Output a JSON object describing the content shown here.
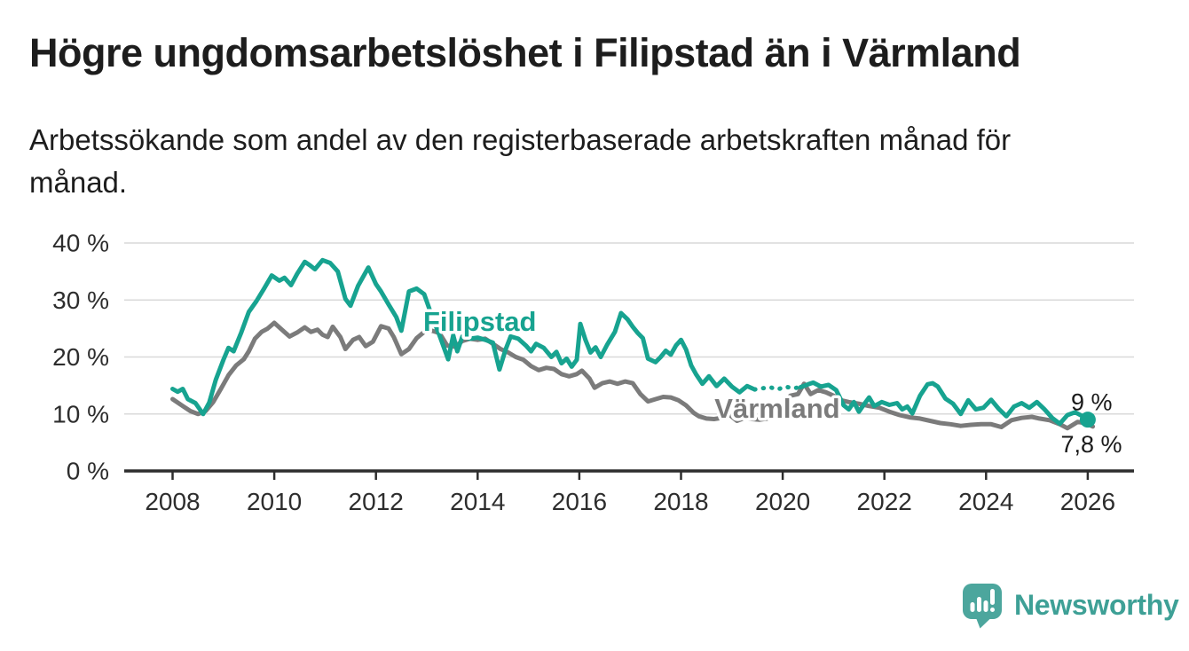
{
  "title": "Högre ungdomsarbetslöshet i Filipstad än i Värmland",
  "subtitle": "Arbetssökande som andel av den registerbaserade arbetskraften månad för månad.",
  "colors": {
    "filipstad": "#17a390",
    "varmland": "#7b7b7b",
    "grid": "#d9d9d9",
    "axis": "#2d2d2d",
    "axis_text": "#2d2d2d",
    "annotation_text": "#1a1a1a",
    "logo_icon": "#4ca69d",
    "logo_text": "#3ea096",
    "background": "#ffffff"
  },
  "branding": {
    "logo_text": "Newsworthy",
    "logo_icon": "bar-chart-speech-bubble-with-exclamation"
  },
  "chart_data": {
    "type": "line",
    "title": "Högre ungdomsarbetslöshet i Filipstad än i Värmland",
    "subtitle": "Arbetssökande som andel av den registerbaserade arbetskraften månad för månad.",
    "xlabel": "",
    "ylabel": "",
    "grid": "horizontal-only",
    "legend": "inline-labels-on-lines",
    "x_axis": {
      "min": 2007.05,
      "max": 2026.91,
      "ticks": [
        2008,
        2010,
        2012,
        2014,
        2016,
        2018,
        2020,
        2022,
        2024,
        2026
      ],
      "tick_labels": [
        "2008",
        "2010",
        "2012",
        "2014",
        "2016",
        "2018",
        "2020",
        "2022",
        "2024",
        "2026"
      ]
    },
    "y_axis": {
      "min": 0,
      "max": 40,
      "ticks": [
        0,
        10,
        20,
        30,
        40
      ],
      "tick_labels": [
        "0 %",
        "10 %",
        "20 %",
        "30 %",
        "40 %"
      ]
    },
    "series": [
      {
        "name": "Värmland",
        "color": "#7b7b7b",
        "dash_ranges": [],
        "points": [
          [
            2008.0,
            12.6
          ],
          [
            2008.2,
            11.4
          ],
          [
            2008.35,
            10.5
          ],
          [
            2008.5,
            10.0
          ],
          [
            2008.65,
            10.5
          ],
          [
            2008.8,
            12.1
          ],
          [
            2008.95,
            14.4
          ],
          [
            2009.1,
            16.8
          ],
          [
            2009.25,
            18.5
          ],
          [
            2009.4,
            19.6
          ],
          [
            2009.5,
            21.0
          ],
          [
            2009.62,
            23.2
          ],
          [
            2009.75,
            24.4
          ],
          [
            2009.87,
            25.0
          ],
          [
            2010.0,
            26.0
          ],
          [
            2010.15,
            24.8
          ],
          [
            2010.3,
            23.6
          ],
          [
            2010.45,
            24.3
          ],
          [
            2010.6,
            25.2
          ],
          [
            2010.72,
            24.4
          ],
          [
            2010.85,
            24.8
          ],
          [
            2010.95,
            23.9
          ],
          [
            2011.05,
            23.5
          ],
          [
            2011.15,
            25.3
          ],
          [
            2011.3,
            23.5
          ],
          [
            2011.4,
            21.4
          ],
          [
            2011.55,
            23.0
          ],
          [
            2011.67,
            23.5
          ],
          [
            2011.8,
            21.9
          ],
          [
            2011.94,
            22.7
          ],
          [
            2012.1,
            25.4
          ],
          [
            2012.25,
            25.0
          ],
          [
            2012.35,
            23.5
          ],
          [
            2012.5,
            20.5
          ],
          [
            2012.65,
            21.4
          ],
          [
            2012.8,
            23.3
          ],
          [
            2012.95,
            24.4
          ],
          [
            2013.1,
            24.6
          ],
          [
            2013.25,
            24.2
          ],
          [
            2013.4,
            22.0
          ],
          [
            2013.55,
            21.8
          ],
          [
            2013.7,
            22.8
          ],
          [
            2013.85,
            23.2
          ],
          [
            2014.0,
            23.0
          ],
          [
            2014.15,
            23.2
          ],
          [
            2014.3,
            22.3
          ],
          [
            2014.45,
            21.4
          ],
          [
            2014.6,
            20.8
          ],
          [
            2014.75,
            20.0
          ],
          [
            2014.9,
            19.5
          ],
          [
            2015.05,
            18.4
          ],
          [
            2015.2,
            17.7
          ],
          [
            2015.35,
            18.1
          ],
          [
            2015.5,
            17.9
          ],
          [
            2015.65,
            17.0
          ],
          [
            2015.8,
            16.6
          ],
          [
            2015.95,
            17.0
          ],
          [
            2016.05,
            17.6
          ],
          [
            2016.2,
            16.2
          ],
          [
            2016.3,
            14.6
          ],
          [
            2016.45,
            15.4
          ],
          [
            2016.6,
            15.7
          ],
          [
            2016.75,
            15.3
          ],
          [
            2016.9,
            15.7
          ],
          [
            2017.05,
            15.4
          ],
          [
            2017.2,
            13.5
          ],
          [
            2017.35,
            12.2
          ],
          [
            2017.5,
            12.6
          ],
          [
            2017.65,
            13.0
          ],
          [
            2017.8,
            12.9
          ],
          [
            2017.95,
            12.4
          ],
          [
            2018.1,
            11.5
          ],
          [
            2018.25,
            10.2
          ],
          [
            2018.35,
            9.6
          ],
          [
            2018.5,
            9.2
          ],
          [
            2018.65,
            9.1
          ],
          [
            2018.8,
            9.3
          ],
          [
            2018.95,
            9.9
          ],
          [
            2019.1,
            8.8
          ],
          [
            2019.25,
            9.3
          ],
          [
            2019.4,
            9.1
          ],
          [
            2019.55,
            9.0
          ],
          [
            2019.7,
            9.2
          ],
          [
            2019.85,
            9.8
          ],
          [
            2020.0,
            11.5
          ],
          [
            2020.15,
            13.2
          ],
          [
            2020.3,
            13.5
          ],
          [
            2020.42,
            15.3
          ],
          [
            2020.55,
            13.5
          ],
          [
            2020.7,
            14.2
          ],
          [
            2020.85,
            13.8
          ],
          [
            2021.0,
            13.2
          ],
          [
            2021.15,
            12.4
          ],
          [
            2021.3,
            12.1
          ],
          [
            2021.5,
            11.8
          ],
          [
            2021.7,
            11.4
          ],
          [
            2021.9,
            11.1
          ],
          [
            2022.1,
            10.4
          ],
          [
            2022.3,
            9.8
          ],
          [
            2022.5,
            9.4
          ],
          [
            2022.7,
            9.2
          ],
          [
            2022.9,
            8.8
          ],
          [
            2023.1,
            8.4
          ],
          [
            2023.3,
            8.2
          ],
          [
            2023.5,
            7.9
          ],
          [
            2023.7,
            8.1
          ],
          [
            2023.9,
            8.2
          ],
          [
            2024.1,
            8.2
          ],
          [
            2024.3,
            7.7
          ],
          [
            2024.5,
            8.9
          ],
          [
            2024.7,
            9.3
          ],
          [
            2024.9,
            9.5
          ],
          [
            2025.05,
            9.2
          ],
          [
            2025.25,
            8.9
          ],
          [
            2025.45,
            8.2
          ],
          [
            2025.6,
            7.5
          ],
          [
            2025.8,
            8.6
          ],
          [
            2025.95,
            8.4
          ],
          [
            2026.1,
            7.8
          ]
        ]
      },
      {
        "name": "Filipstad",
        "color": "#17a390",
        "dash_ranges": [
          [
            2019.5,
            2020.28
          ]
        ],
        "points": [
          [
            2008.0,
            14.4
          ],
          [
            2008.1,
            13.9
          ],
          [
            2008.2,
            14.4
          ],
          [
            2008.3,
            12.6
          ],
          [
            2008.45,
            11.9
          ],
          [
            2008.6,
            10.0
          ],
          [
            2008.72,
            12.0
          ],
          [
            2008.85,
            16.0
          ],
          [
            2009.0,
            19.5
          ],
          [
            2009.1,
            21.6
          ],
          [
            2009.2,
            21.0
          ],
          [
            2009.35,
            24.3
          ],
          [
            2009.5,
            27.9
          ],
          [
            2009.65,
            29.8
          ],
          [
            2009.8,
            32.0
          ],
          [
            2009.95,
            34.3
          ],
          [
            2010.1,
            33.4
          ],
          [
            2010.2,
            33.9
          ],
          [
            2010.33,
            32.6
          ],
          [
            2010.45,
            34.6
          ],
          [
            2010.6,
            36.7
          ],
          [
            2010.7,
            36.1
          ],
          [
            2010.8,
            35.4
          ],
          [
            2010.95,
            37.0
          ],
          [
            2011.1,
            36.5
          ],
          [
            2011.25,
            35.0
          ],
          [
            2011.4,
            30.2
          ],
          [
            2011.5,
            29.0
          ],
          [
            2011.65,
            32.5
          ],
          [
            2011.85,
            35.7
          ],
          [
            2012.0,
            32.8
          ],
          [
            2012.1,
            31.5
          ],
          [
            2012.25,
            29.2
          ],
          [
            2012.4,
            27.0
          ],
          [
            2012.5,
            24.6
          ],
          [
            2012.65,
            31.5
          ],
          [
            2012.8,
            32.0
          ],
          [
            2012.95,
            31.0
          ],
          [
            2013.1,
            27.2
          ],
          [
            2013.25,
            23.8
          ],
          [
            2013.42,
            19.6
          ],
          [
            2013.52,
            23.8
          ],
          [
            2013.6,
            21.0
          ],
          [
            2013.7,
            23.6
          ],
          [
            2013.85,
            23.2
          ],
          [
            2014.0,
            23.4
          ],
          [
            2014.15,
            23.0
          ],
          [
            2014.3,
            22.5
          ],
          [
            2014.43,
            17.8
          ],
          [
            2014.55,
            21.3
          ],
          [
            2014.65,
            23.6
          ],
          [
            2014.8,
            23.2
          ],
          [
            2014.95,
            22.0
          ],
          [
            2015.05,
            21.0
          ],
          [
            2015.15,
            22.3
          ],
          [
            2015.3,
            21.6
          ],
          [
            2015.45,
            20.0
          ],
          [
            2015.55,
            20.9
          ],
          [
            2015.65,
            18.9
          ],
          [
            2015.75,
            19.7
          ],
          [
            2015.85,
            18.3
          ],
          [
            2015.95,
            19.5
          ],
          [
            2016.02,
            25.8
          ],
          [
            2016.12,
            23.0
          ],
          [
            2016.22,
            20.8
          ],
          [
            2016.32,
            21.7
          ],
          [
            2016.42,
            20.0
          ],
          [
            2016.55,
            22.2
          ],
          [
            2016.7,
            24.4
          ],
          [
            2016.82,
            27.7
          ],
          [
            2016.95,
            26.6
          ],
          [
            2017.05,
            25.3
          ],
          [
            2017.15,
            24.2
          ],
          [
            2017.25,
            23.3
          ],
          [
            2017.35,
            19.7
          ],
          [
            2017.5,
            19.1
          ],
          [
            2017.6,
            20.0
          ],
          [
            2017.7,
            21.1
          ],
          [
            2017.8,
            20.4
          ],
          [
            2017.9,
            22.0
          ],
          [
            2018.0,
            23.0
          ],
          [
            2018.1,
            21.3
          ],
          [
            2018.2,
            18.5
          ],
          [
            2018.3,
            16.9
          ],
          [
            2018.42,
            15.3
          ],
          [
            2018.55,
            16.6
          ],
          [
            2018.7,
            14.9
          ],
          [
            2018.85,
            16.2
          ],
          [
            2019.0,
            14.8
          ],
          [
            2019.15,
            13.8
          ],
          [
            2019.3,
            14.9
          ],
          [
            2019.45,
            14.3
          ],
          [
            2019.6,
            14.5
          ],
          [
            2019.75,
            14.7
          ],
          [
            2019.9,
            14.3
          ],
          [
            2020.05,
            14.8
          ],
          [
            2020.2,
            14.5
          ],
          [
            2020.35,
            14.7
          ],
          [
            2020.5,
            15.2
          ],
          [
            2020.6,
            15.5
          ],
          [
            2020.75,
            14.8
          ],
          [
            2020.9,
            15.1
          ],
          [
            2021.05,
            14.2
          ],
          [
            2021.2,
            11.5
          ],
          [
            2021.3,
            10.8
          ],
          [
            2021.4,
            12.1
          ],
          [
            2021.5,
            10.4
          ],
          [
            2021.6,
            11.7
          ],
          [
            2021.7,
            12.9
          ],
          [
            2021.8,
            11.4
          ],
          [
            2021.95,
            12.1
          ],
          [
            2022.1,
            11.6
          ],
          [
            2022.25,
            11.9
          ],
          [
            2022.35,
            10.8
          ],
          [
            2022.45,
            11.3
          ],
          [
            2022.55,
            10.1
          ],
          [
            2022.7,
            13.2
          ],
          [
            2022.85,
            15.2
          ],
          [
            2022.95,
            15.4
          ],
          [
            2023.05,
            14.8
          ],
          [
            2023.2,
            12.7
          ],
          [
            2023.35,
            11.8
          ],
          [
            2023.5,
            10.0
          ],
          [
            2023.65,
            12.4
          ],
          [
            2023.8,
            10.8
          ],
          [
            2023.95,
            11.1
          ],
          [
            2024.1,
            12.5
          ],
          [
            2024.25,
            10.9
          ],
          [
            2024.4,
            9.6
          ],
          [
            2024.55,
            11.3
          ],
          [
            2024.7,
            11.9
          ],
          [
            2024.85,
            11.1
          ],
          [
            2025.0,
            12.1
          ],
          [
            2025.15,
            10.8
          ],
          [
            2025.3,
            9.3
          ],
          [
            2025.45,
            8.3
          ],
          [
            2025.6,
            9.8
          ],
          [
            2025.75,
            10.3
          ],
          [
            2025.9,
            9.6
          ],
          [
            2026.0,
            9.0
          ]
        ]
      }
    ],
    "end_dot": {
      "series": "Filipstad",
      "year": 2026.0,
      "value": 9.0,
      "radius": 9
    },
    "annotations": [
      {
        "id": "filipstad-line-label",
        "text": "Filipstad",
        "year": 2012.93,
        "value": 24.6,
        "color": "#17a390",
        "weight": "bold",
        "size": 31,
        "anchor": "start",
        "halo": true
      },
      {
        "id": "varmland-line-label",
        "text": "Värmland",
        "year": 2018.66,
        "value": 9.3,
        "color": "#7b7b7b",
        "weight": "bold",
        "size": 31,
        "anchor": "start",
        "halo": true
      },
      {
        "id": "filipstad-end-value",
        "text": "9 %",
        "year": 2025.67,
        "value": 10.7,
        "color": "#1a1a1a",
        "weight": "normal",
        "size": 27,
        "anchor": "start",
        "halo": false
      },
      {
        "id": "varmland-end-value",
        "text": "7,8 %",
        "year": 2025.47,
        "value": 3.3,
        "color": "#1a1a1a",
        "weight": "normal",
        "size": 27,
        "anchor": "start",
        "halo": false
      }
    ]
  }
}
